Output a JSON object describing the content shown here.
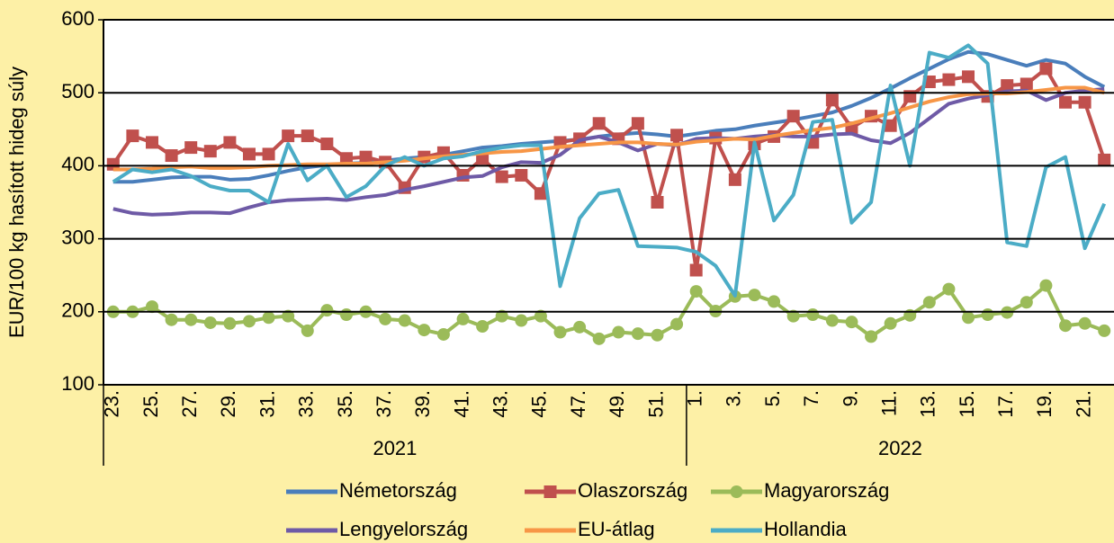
{
  "chart_data": {
    "type": "line",
    "y_label": "EUR/100 kg hasított hideg súly",
    "ylim": [
      100,
      600
    ],
    "yticks": [
      100,
      200,
      300,
      400,
      500,
      600
    ],
    "grid": true,
    "categories": [
      "23.",
      null,
      "25.",
      null,
      "27.",
      null,
      "29.",
      null,
      "31.",
      null,
      "33.",
      null,
      "35.",
      null,
      "37.",
      null,
      "39.",
      null,
      "41.",
      null,
      "43.",
      null,
      "45.",
      null,
      "47.",
      null,
      "49.",
      null,
      "51.",
      null,
      "1.",
      null,
      "3.",
      null,
      "5.",
      null,
      "7.",
      null,
      "9.",
      null,
      "11.",
      null,
      "13.",
      null,
      "15.",
      null,
      "17.",
      null,
      "19.",
      null,
      "21.",
      null
    ],
    "groups": [
      "2021",
      "2022"
    ],
    "legend": "bottom",
    "series": [
      {
        "name": "Németország",
        "color": "#4a7ebb",
        "marker": "none",
        "values": [
          378,
          378,
          381,
          384,
          385,
          385,
          381,
          382,
          387,
          393,
          398,
          401,
          403,
          404,
          407,
          410,
          412,
          415,
          420,
          425,
          427,
          430,
          432,
          434,
          436,
          440,
          443,
          445,
          443,
          440,
          444,
          448,
          450,
          455,
          459,
          463,
          468,
          473,
          482,
          493,
          506,
          520,
          533,
          546,
          556,
          553,
          545,
          537,
          545,
          540,
          522,
          508
        ]
      },
      {
        "name": "Olaszország",
        "color": "#c0504d",
        "marker": "square",
        "values": [
          402,
          441,
          432,
          414,
          425,
          420,
          432,
          416,
          416,
          441,
          441,
          430,
          410,
          412,
          405,
          370,
          412,
          418,
          387,
          410,
          385,
          387,
          362,
          432,
          437,
          458,
          437,
          458,
          350,
          442,
          257,
          438,
          381,
          430,
          440,
          468,
          432,
          490,
          452,
          468,
          455,
          495,
          515,
          518,
          522,
          495,
          510,
          512,
          533,
          487,
          487,
          408
        ]
      },
      {
        "name": "Magyarország",
        "color": "#9bbb59",
        "marker": "circle",
        "values": [
          200,
          200,
          207,
          189,
          189,
          185,
          184,
          187,
          192,
          194,
          174,
          202,
          196,
          200,
          190,
          188,
          175,
          169,
          190,
          180,
          194,
          188,
          194,
          172,
          179,
          163,
          172,
          170,
          168,
          183,
          228,
          201,
          221,
          223,
          214,
          194,
          196,
          188,
          186,
          166,
          184,
          195,
          213,
          231,
          192,
          196,
          199,
          213,
          236,
          181,
          184,
          174
        ]
      },
      {
        "name": "Lengyelország",
        "color": "#6e5aa6",
        "marker": "none",
        "values": [
          341,
          335,
          333,
          334,
          336,
          336,
          335,
          343,
          350,
          353,
          354,
          355,
          353,
          357,
          360,
          367,
          372,
          378,
          384,
          386,
          398,
          405,
          404,
          415,
          435,
          440,
          432,
          421,
          430,
          428,
          437,
          438,
          437,
          440,
          442,
          440,
          440,
          443,
          444,
          435,
          431,
          445,
          465,
          485,
          492,
          497,
          502,
          503,
          490,
          500,
          503,
          505
        ]
      },
      {
        "name": "EU-átlag",
        "color": "#f79646",
        "marker": "none",
        "values": [
          395,
          395,
          396,
          398,
          399,
          397,
          397,
          398,
          400,
          401,
          402,
          402,
          403,
          403,
          405,
          407,
          410,
          413,
          415,
          417,
          419,
          420,
          423,
          426,
          428,
          430,
          432,
          432,
          430,
          429,
          433,
          435,
          437,
          436,
          441,
          445,
          449,
          452,
          458,
          465,
          472,
          480,
          488,
          494,
          498,
          499,
          499,
          501,
          504,
          507,
          507,
          500
        ]
      },
      {
        "name": "Hollandia",
        "color": "#4bacc6",
        "marker": "none",
        "values": [
          378,
          395,
          391,
          395,
          386,
          372,
          366,
          366,
          350,
          430,
          380,
          400,
          357,
          372,
          400,
          412,
          400,
          410,
          413,
          420,
          425,
          428,
          428,
          235,
          328,
          362,
          367,
          290,
          289,
          288,
          282,
          263,
          222,
          432,
          325,
          360,
          460,
          463,
          322,
          350,
          510,
          400,
          555,
          548,
          565,
          540,
          295,
          290,
          398,
          412,
          287,
          348
        ]
      }
    ]
  }
}
